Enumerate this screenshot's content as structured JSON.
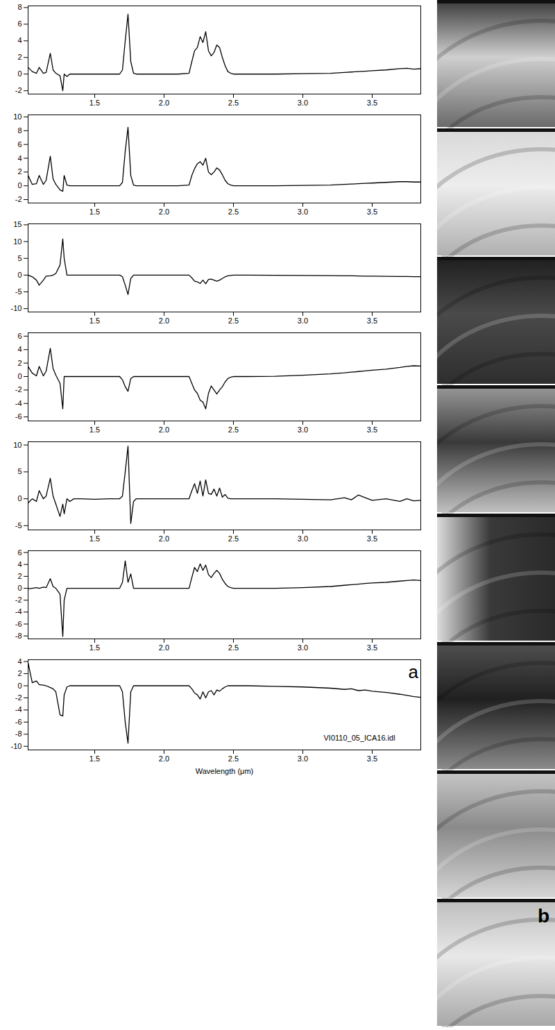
{
  "chart_data": [
    {
      "type": "line",
      "color": "#000000",
      "x": [
        1.02,
        1.05,
        1.08,
        1.1,
        1.13,
        1.15,
        1.18,
        1.2,
        1.22,
        1.25,
        1.27,
        1.28,
        1.3,
        1.32,
        1.35,
        1.4,
        1.5,
        1.6,
        1.68,
        1.7,
        1.72,
        1.74,
        1.76,
        1.78,
        1.8,
        1.9,
        2.0,
        2.1,
        2.18,
        2.2,
        2.22,
        2.24,
        2.26,
        2.28,
        2.3,
        2.32,
        2.34,
        2.36,
        2.38,
        2.4,
        2.42,
        2.44,
        2.46,
        2.48,
        2.5,
        2.6,
        2.8,
        3.0,
        3.2,
        3.3,
        3.35,
        3.4,
        3.45,
        3.5,
        3.6,
        3.7,
        3.75,
        3.8,
        3.85
      ],
      "values": [
        0.8,
        0.3,
        0.1,
        0.8,
        0.1,
        0.2,
        2.5,
        0.5,
        0.1,
        -0.2,
        -2.0,
        0,
        -0.3,
        0,
        0,
        0,
        0,
        0,
        0,
        0.5,
        4,
        7.2,
        1.5,
        0.1,
        0,
        0,
        0,
        0,
        0.1,
        1.5,
        2.8,
        3.2,
        4.5,
        3.8,
        5.1,
        2.8,
        2.2,
        2.6,
        3.5,
        3.2,
        2.0,
        1.0,
        0.3,
        0.1,
        0,
        0,
        0,
        0.05,
        0.1,
        0.2,
        0.25,
        0.3,
        0.35,
        0.4,
        0.5,
        0.65,
        0.7,
        0.6,
        0.65
      ],
      "xlim": [
        1.02,
        3.85
      ],
      "xticks": [
        1.5,
        {
          "value": 2,
          "label": "2.0"
        },
        2.5,
        {
          "value": 3,
          "label": "3.0"
        },
        3.5
      ],
      "ylim": [
        -2.4,
        8.2
      ],
      "yticks": [
        -2,
        0,
        2,
        4,
        6,
        8
      ]
    },
    {
      "type": "line",
      "color": "#000000",
      "x": [
        1.02,
        1.05,
        1.08,
        1.1,
        1.13,
        1.15,
        1.18,
        1.2,
        1.22,
        1.25,
        1.27,
        1.28,
        1.3,
        1.32,
        1.35,
        1.4,
        1.5,
        1.6,
        1.68,
        1.7,
        1.72,
        1.74,
        1.76,
        1.78,
        1.8,
        1.9,
        2.0,
        2.1,
        2.18,
        2.2,
        2.22,
        2.24,
        2.26,
        2.28,
        2.3,
        2.32,
        2.34,
        2.36,
        2.38,
        2.4,
        2.42,
        2.44,
        2.46,
        2.48,
        2.5,
        2.6,
        2.8,
        3.0,
        3.2,
        3.3,
        3.35,
        3.4,
        3.45,
        3.5,
        3.6,
        3.7,
        3.75,
        3.8,
        3.85
      ],
      "values": [
        1.5,
        0.2,
        0.3,
        1.5,
        0.2,
        0.8,
        4.3,
        1.0,
        0.2,
        -0.6,
        -0.8,
        1.5,
        0.1,
        0,
        0,
        0,
        0,
        0,
        0,
        0.5,
        5,
        8.5,
        1.5,
        0.1,
        0,
        0,
        0,
        0,
        0.1,
        1.5,
        2.5,
        3.2,
        3.5,
        3.0,
        4.0,
        2.0,
        1.6,
        2.0,
        2.6,
        2.3,
        1.6,
        0.8,
        0.3,
        0.1,
        0,
        0,
        0,
        0.05,
        0.1,
        0.2,
        0.25,
        0.3,
        0.35,
        0.4,
        0.5,
        0.6,
        0.6,
        0.55,
        0.55
      ],
      "xlim": [
        1.02,
        3.85
      ],
      "xticks": [
        1.5,
        {
          "value": 2,
          "label": "2.0"
        },
        2.5,
        {
          "value": 3,
          "label": "3.0"
        },
        3.5
      ],
      "ylim": [
        -2.5,
        10.3
      ],
      "yticks": [
        -2,
        0,
        2,
        4,
        6,
        8,
        10
      ]
    },
    {
      "type": "line",
      "color": "#000000",
      "x": [
        1.02,
        1.05,
        1.08,
        1.1,
        1.13,
        1.15,
        1.18,
        1.2,
        1.22,
        1.25,
        1.27,
        1.28,
        1.3,
        1.32,
        1.35,
        1.4,
        1.5,
        1.6,
        1.68,
        1.7,
        1.72,
        1.74,
        1.76,
        1.78,
        1.8,
        1.9,
        2.0,
        2.1,
        2.18,
        2.2,
        2.22,
        2.24,
        2.26,
        2.28,
        2.3,
        2.32,
        2.34,
        2.36,
        2.38,
        2.4,
        2.42,
        2.44,
        2.46,
        2.48,
        2.5,
        2.6,
        2.8,
        3.0,
        3.2,
        3.3,
        3.35,
        3.4,
        3.45,
        3.5,
        3.6,
        3.7,
        3.75,
        3.8,
        3.85
      ],
      "values": [
        0,
        -0.5,
        -1.5,
        -3,
        -1.5,
        -0.3,
        -0.2,
        0,
        0.5,
        3,
        10.8,
        5,
        0,
        0,
        0,
        0,
        0,
        0,
        0,
        -0.5,
        -3,
        -5.8,
        -1,
        0,
        0,
        0,
        0,
        0,
        0,
        -0.8,
        -1.8,
        -2,
        -2.5,
        -1.5,
        -2.6,
        -1.3,
        -1.2,
        -1.5,
        -1.8,
        -1.5,
        -1,
        -0.5,
        -0.2,
        -0.1,
        0,
        0,
        -0.05,
        -0.1,
        -0.15,
        -0.2,
        -0.2,
        -0.25,
        -0.3,
        -0.3,
        -0.35,
        -0.4,
        -0.4,
        -0.45,
        -0.45
      ],
      "xlim": [
        1.02,
        3.85
      ],
      "xticks": [
        1.5,
        {
          "value": 2,
          "label": "2.0"
        },
        2.5,
        {
          "value": 3,
          "label": "3.0"
        },
        3.5
      ],
      "ylim": [
        -11,
        15.3
      ],
      "yticks": [
        -10,
        -5,
        0,
        5,
        10,
        15
      ]
    },
    {
      "type": "line",
      "color": "#000000",
      "x": [
        1.02,
        1.05,
        1.08,
        1.1,
        1.13,
        1.15,
        1.18,
        1.2,
        1.22,
        1.25,
        1.27,
        1.28,
        1.3,
        1.32,
        1.35,
        1.4,
        1.5,
        1.6,
        1.68,
        1.7,
        1.72,
        1.74,
        1.76,
        1.78,
        1.8,
        1.9,
        2.0,
        2.1,
        2.18,
        2.2,
        2.22,
        2.24,
        2.26,
        2.28,
        2.3,
        2.32,
        2.34,
        2.36,
        2.38,
        2.4,
        2.42,
        2.44,
        2.46,
        2.48,
        2.5,
        2.6,
        2.8,
        3.0,
        3.2,
        3.3,
        3.35,
        3.4,
        3.45,
        3.5,
        3.6,
        3.7,
        3.75,
        3.8,
        3.85
      ],
      "values": [
        1.5,
        0.5,
        0.1,
        1.5,
        0.1,
        0.8,
        4.2,
        1.2,
        0.2,
        -1,
        -4.8,
        0,
        0,
        0,
        0,
        0,
        0,
        0,
        0,
        -0.5,
        -1.5,
        -2.2,
        -0.3,
        0,
        0,
        0,
        0,
        0,
        0,
        -1,
        -2,
        -2.5,
        -3.5,
        -3.8,
        -4.8,
        -2.5,
        -1.4,
        -2,
        -2.6,
        -2,
        -1.5,
        -0.8,
        -0.3,
        -0.1,
        0,
        0,
        0.05,
        0.2,
        0.4,
        0.55,
        0.65,
        0.75,
        0.85,
        0.95,
        1.1,
        1.35,
        1.5,
        1.6,
        1.55
      ],
      "xlim": [
        1.02,
        3.85
      ],
      "xticks": [
        1.5,
        {
          "value": 2,
          "label": "2.0"
        },
        2.5,
        {
          "value": 3,
          "label": "3.0"
        },
        3.5
      ],
      "ylim": [
        -6.6,
        6.5
      ],
      "yticks": [
        -6,
        -4,
        -2,
        0,
        2,
        4,
        6
      ]
    },
    {
      "type": "line",
      "color": "#000000",
      "x": [
        1.02,
        1.05,
        1.08,
        1.1,
        1.13,
        1.15,
        1.18,
        1.2,
        1.22,
        1.25,
        1.27,
        1.28,
        1.3,
        1.32,
        1.35,
        1.4,
        1.5,
        1.6,
        1.68,
        1.7,
        1.72,
        1.74,
        1.76,
        1.78,
        1.8,
        1.9,
        2.0,
        2.1,
        2.18,
        2.2,
        2.22,
        2.24,
        2.26,
        2.28,
        2.3,
        2.32,
        2.34,
        2.36,
        2.38,
        2.4,
        2.42,
        2.44,
        2.46,
        2.48,
        2.5,
        2.6,
        2.8,
        3.0,
        3.2,
        3.3,
        3.35,
        3.4,
        3.45,
        3.5,
        3.6,
        3.7,
        3.75,
        3.8,
        3.85
      ],
      "values": [
        -0.8,
        0,
        -0.5,
        1.5,
        0,
        0.5,
        3.8,
        0.5,
        -1,
        -3.3,
        -1,
        -2.8,
        0,
        -0.5,
        0,
        0,
        -0.1,
        0,
        0,
        0.5,
        5,
        9.8,
        -4.6,
        -0.5,
        0,
        0,
        0,
        0,
        0,
        1.5,
        2.8,
        1,
        3.3,
        0.5,
        3.5,
        1,
        0.8,
        1.8,
        0.5,
        2,
        0.3,
        0.8,
        0.1,
        0,
        0,
        0,
        0,
        -0.1,
        -0.2,
        0.2,
        -0.2,
        0.7,
        0.2,
        -0.3,
        0,
        -0.5,
        0,
        -0.4,
        -0.3
      ],
      "xlim": [
        1.02,
        3.85
      ],
      "xticks": [
        1.5,
        {
          "value": 2,
          "label": "2.0"
        },
        2.5,
        {
          "value": 3,
          "label": "3.0"
        },
        3.5
      ],
      "ylim": [
        -5.8,
        10.6
      ],
      "yticks": [
        -5,
        0,
        5,
        10
      ]
    },
    {
      "type": "line",
      "color": "#000000",
      "x": [
        1.02,
        1.05,
        1.08,
        1.1,
        1.13,
        1.15,
        1.18,
        1.2,
        1.22,
        1.25,
        1.27,
        1.28,
        1.3,
        1.32,
        1.35,
        1.4,
        1.5,
        1.6,
        1.68,
        1.7,
        1.72,
        1.74,
        1.76,
        1.78,
        1.8,
        1.9,
        2.0,
        2.1,
        2.18,
        2.2,
        2.22,
        2.24,
        2.26,
        2.28,
        2.3,
        2.32,
        2.34,
        2.36,
        2.38,
        2.4,
        2.42,
        2.44,
        2.46,
        2.48,
        2.5,
        2.6,
        2.8,
        3.0,
        3.2,
        3.3,
        3.35,
        3.4,
        3.45,
        3.5,
        3.6,
        3.7,
        3.75,
        3.8,
        3.85
      ],
      "values": [
        -0.1,
        0,
        0.1,
        0,
        0.2,
        0.1,
        1.6,
        0.3,
        0,
        -1,
        -8.1,
        -2,
        0,
        0,
        0,
        0,
        0,
        0,
        0,
        1,
        4.6,
        1,
        2.4,
        0,
        0,
        0,
        0,
        0,
        0,
        1.8,
        3.5,
        2.8,
        4.1,
        3,
        3.9,
        2.3,
        1.8,
        2.5,
        3,
        2.5,
        1.5,
        0.8,
        0.3,
        0.1,
        0,
        0,
        0,
        0.1,
        0.3,
        0.5,
        0.6,
        0.7,
        0.8,
        0.9,
        1,
        1.2,
        1.3,
        1.4,
        1.3
      ],
      "xlim": [
        1.02,
        3.85
      ],
      "xticks": [
        1.5,
        {
          "value": 2,
          "label": "2.0"
        },
        2.5,
        {
          "value": 3,
          "label": "3.0"
        },
        3.5
      ],
      "ylim": [
        -8.5,
        6.3
      ],
      "yticks": [
        -8,
        -6,
        -4,
        -2,
        0,
        2,
        4,
        6
      ]
    },
    {
      "type": "line",
      "color": "#000000",
      "x": [
        1.02,
        1.05,
        1.08,
        1.1,
        1.13,
        1.15,
        1.18,
        1.2,
        1.22,
        1.25,
        1.27,
        1.28,
        1.3,
        1.32,
        1.35,
        1.4,
        1.5,
        1.6,
        1.68,
        1.7,
        1.72,
        1.74,
        1.76,
        1.78,
        1.8,
        1.9,
        2.0,
        2.1,
        2.18,
        2.2,
        2.22,
        2.24,
        2.26,
        2.28,
        2.3,
        2.32,
        2.34,
        2.36,
        2.38,
        2.4,
        2.42,
        2.44,
        2.46,
        2.48,
        2.5,
        2.6,
        2.8,
        3.0,
        3.2,
        3.3,
        3.35,
        3.4,
        3.45,
        3.5,
        3.6,
        3.7,
        3.75,
        3.8,
        3.85
      ],
      "values": [
        3.8,
        0.5,
        0.8,
        0.2,
        0.1,
        0,
        -0.3,
        -0.5,
        -1,
        -4.8,
        -5,
        -1.5,
        -0.2,
        0,
        0,
        0,
        0,
        0,
        0,
        -1,
        -6,
        -9.5,
        -1,
        0,
        0,
        0,
        0,
        0,
        0,
        -0.5,
        -1.2,
        -1.5,
        -2.2,
        -1,
        -2,
        -1,
        -0.8,
        -1.5,
        -0.7,
        -0.9,
        -0.5,
        -0.2,
        0,
        0,
        0,
        0,
        -0.1,
        -0.2,
        -0.4,
        -0.6,
        -0.5,
        -0.8,
        -0.7,
        -0.9,
        -1.1,
        -1.4,
        -1.6,
        -1.8,
        -1.9
      ],
      "xlim": [
        1.02,
        3.85
      ],
      "xticks": [
        1.5,
        {
          "value": 2,
          "label": "2.0"
        },
        2.5,
        {
          "value": 3,
          "label": "3.0"
        },
        3.5
      ],
      "ylim": [
        -10.6,
        4.3
      ],
      "yticks": [
        -10,
        -8,
        -6,
        -4,
        -2,
        0,
        2,
        4
      ],
      "x_label": "Wavelength (μm)",
      "annotations": [
        {
          "text": "a",
          "x": 3.76,
          "y": 2.2
        },
        {
          "text": "VI0110_05_ICA16.idl",
          "x": 3.15,
          "y": -8.6
        }
      ]
    }
  ],
  "image_panel": {
    "label": "b"
  }
}
